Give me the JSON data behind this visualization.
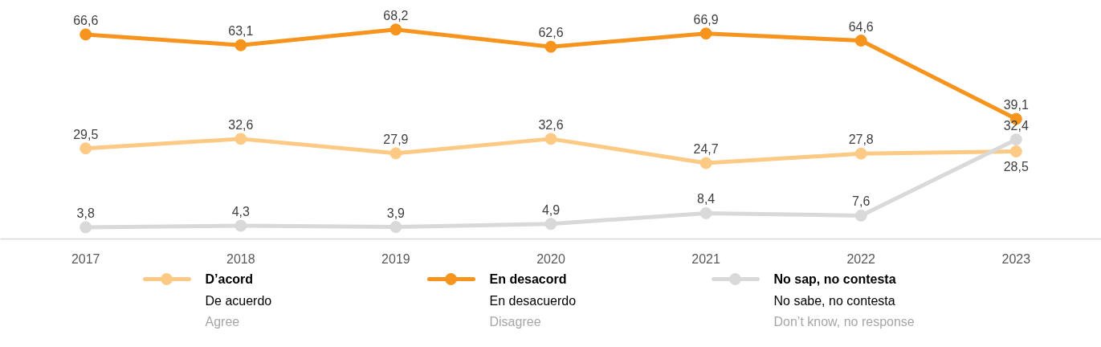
{
  "chart_data": {
    "type": "line",
    "categories": [
      "2017",
      "2018",
      "2019",
      "2020",
      "2021",
      "2022",
      "2023"
    ],
    "series": [
      {
        "name": "D’acord",
        "color": "#fdca85",
        "values": [
          29.5,
          32.6,
          27.9,
          32.6,
          24.7,
          27.8,
          28.5
        ],
        "value_labels": [
          "29,5",
          "32,6",
          "27,9",
          "32,6",
          "24,7",
          "27,8",
          "28,5"
        ]
      },
      {
        "name": "En desacord",
        "color": "#f7941d",
        "values": [
          66.6,
          63.1,
          68.2,
          62.6,
          66.9,
          64.6,
          39.1
        ],
        "value_labels": [
          "66,6",
          "63,1",
          "68,2",
          "62,6",
          "66,9",
          "64,6",
          "39,1"
        ]
      },
      {
        "name": "No sap, no contesta",
        "color": "#d9d9d9",
        "values": [
          3.8,
          4.3,
          3.9,
          4.9,
          8.4,
          7.6,
          32.4
        ],
        "value_labels": [
          "3,8",
          "4,3",
          "3,9",
          "4,9",
          "8,4",
          "7,6",
          "32,4"
        ]
      }
    ],
    "annotations": [
      "De acuerdo",
      "Agree",
      "En desacuerdo",
      "Disagree",
      "No sabe, no contesta",
      "Don’t know, no response"
    ],
    "legend": "bottom",
    "marker": "circle",
    "line_style": "solid",
    "grid": false,
    "tick_labels": "x"
  }
}
